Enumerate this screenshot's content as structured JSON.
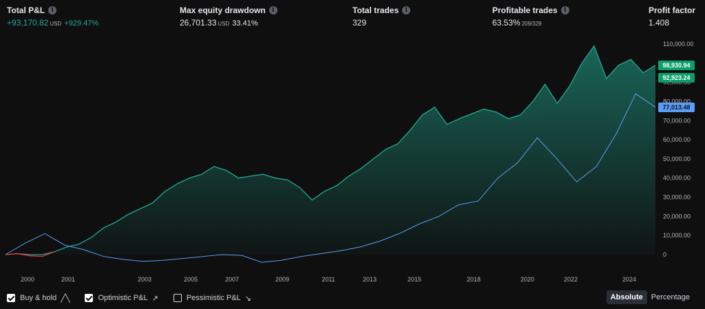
{
  "stats": [
    {
      "title": "Total P&L",
      "value": "+93,170.82",
      "unit": "USD",
      "pct": "+929.47%",
      "positive": true
    },
    {
      "title": "Max equity drawdown",
      "value": "26,701.33",
      "unit": "USD",
      "pct": "33.41%"
    },
    {
      "title": "Total trades",
      "value": "329"
    },
    {
      "title": "Profitable trades",
      "value": "63.53%",
      "sub": "209/329"
    },
    {
      "title": "Profit factor",
      "value": "1.408"
    }
  ],
  "colors": {
    "equity": "#22ab94",
    "buyhold": "#5b9cf6",
    "loss": "#f23645",
    "tag_green": "#0d9e6a"
  },
  "chart_data": {
    "type": "area",
    "x_ticks": [
      "2000",
      "2001",
      "2003",
      "2005",
      "2007",
      "2009",
      "2011",
      "2013",
      "2015",
      "2018",
      "2020",
      "2022",
      "2024"
    ],
    "y_ticks": [
      "0",
      "10,000.00",
      "20,000.00",
      "30,000.00",
      "40,000.00",
      "50,000.00",
      "60,000.00",
      "70,000.00",
      "80,000.00",
      "90,000.00",
      "100,000.00",
      "110,000.00"
    ],
    "ylim": [
      0,
      110000
    ],
    "series": [
      {
        "type": "area",
        "values": [
          0,
          500,
          -600,
          -900,
          1500,
          4000,
          5500,
          9000,
          14000,
          17000,
          21000,
          24000,
          27000,
          33000,
          37000,
          40000,
          42000,
          46000,
          44000,
          40000,
          41000,
          42000,
          40000,
          39000,
          35000,
          28500,
          33000,
          36000,
          41000,
          45000,
          50000,
          55000,
          58000,
          65000,
          73000,
          77000,
          68000,
          71000,
          73500,
          76000,
          74500,
          71000,
          73000,
          80000,
          89000,
          79000,
          88000,
          100000,
          109000,
          92000,
          99000,
          102000,
          95000,
          98930.94
        ]
      },
      {
        "type": "line",
        "values": [
          0,
          6000,
          11000,
          5000,
          2500,
          -1000,
          -2500,
          -3500,
          -3000,
          -2000,
          -1000,
          0,
          -400,
          -4000,
          -3000,
          -1000,
          500,
          2000,
          4000,
          7000,
          11000,
          16000,
          20000,
          26000,
          28000,
          40000,
          48000,
          61000,
          50000,
          38000,
          46000,
          63000,
          84000,
          77013.48
        ]
      }
    ],
    "price_labels": [
      "98,930.94",
      "92,923.24",
      "77,013.48"
    ]
  },
  "legend": [
    {
      "label": "Buy & hold",
      "checked": true,
      "glyph": "╱╲"
    },
    {
      "label": "Optimistic P&L",
      "checked": true,
      "glyph": "↗"
    },
    {
      "label": "Pessimistic P&L",
      "checked": false,
      "glyph": "↘"
    }
  ],
  "toggle": {
    "absolute": "Absolute",
    "percentage": "Percentage"
  }
}
